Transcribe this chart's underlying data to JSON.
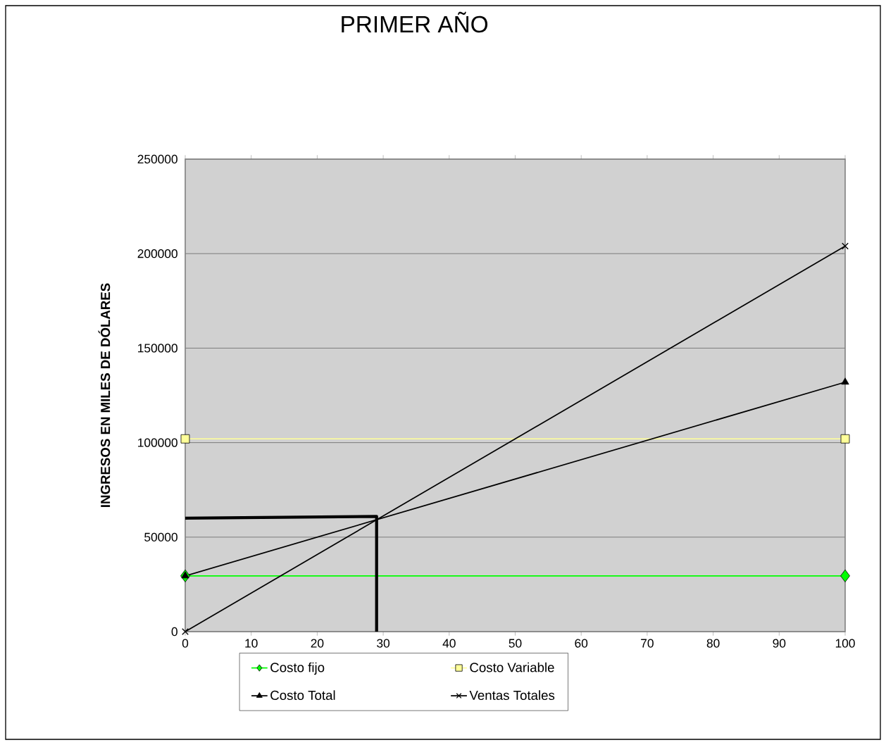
{
  "chart_data": {
    "type": "line",
    "title": "PRIMER AÑO",
    "ylabel": "INGRESOS EN MILES DE DÓLARES",
    "xlim": [
      0,
      100
    ],
    "xticks": [
      0,
      10,
      20,
      30,
      40,
      50,
      60,
      70,
      80,
      90,
      100
    ],
    "ylim": [
      0,
      250000
    ],
    "yticks": [
      0,
      50000,
      100000,
      150000,
      200000,
      250000
    ],
    "grid": "y",
    "legend": "bottom",
    "series": [
      {
        "name": "Costo fijo",
        "color": "#00ff00",
        "marker": "diamond",
        "x": [
          0,
          100
        ],
        "values": [
          29500,
          29500
        ]
      },
      {
        "name": "Costo Variable",
        "color": "#ffff99",
        "marker": "square",
        "x": [
          0,
          100
        ],
        "values": [
          102000,
          102000
        ]
      },
      {
        "name": "Costo Total",
        "color": "#000000",
        "marker": "triangle",
        "x": [
          0,
          100
        ],
        "values": [
          29500,
          132000
        ]
      },
      {
        "name": "Ventas Totales",
        "color": "#000000",
        "marker": "cross",
        "x": [
          0,
          100
        ],
        "values": [
          0,
          204000
        ]
      },
      {
        "color": "#000000",
        "marker": "none",
        "x": [
          0,
          29,
          29
        ],
        "values": [
          60000,
          61000,
          0
        ]
      }
    ]
  }
}
